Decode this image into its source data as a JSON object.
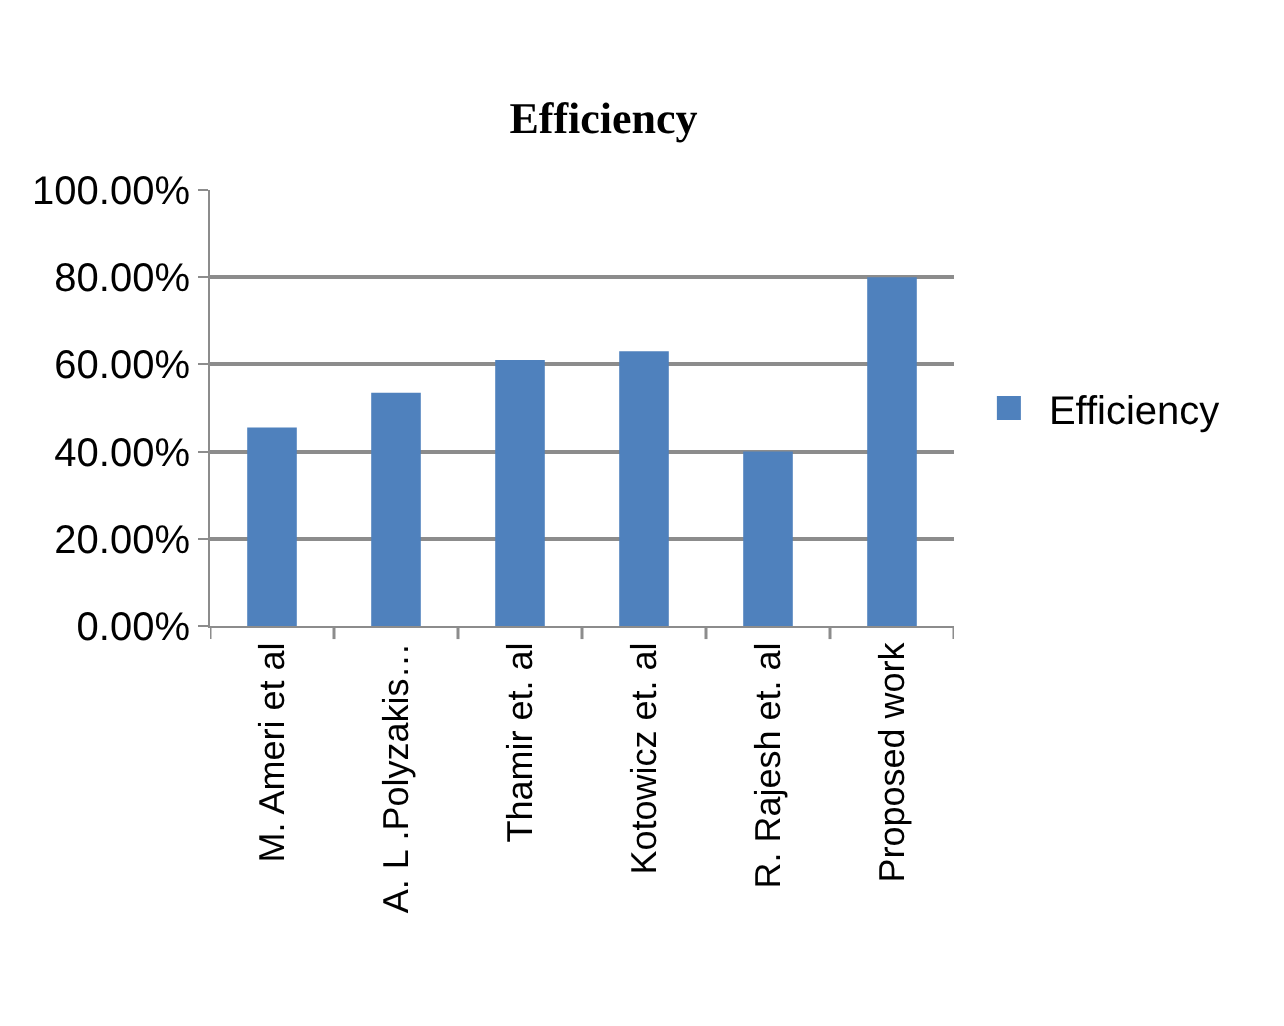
{
  "chart_data": {
    "type": "bar",
    "title": "Efficiency",
    "categories": [
      "M. Ameri et al",
      "A. L .Polyzakis…",
      "Thamir et. al",
      "Kotowicz et. al",
      "R. Rajesh et. al",
      "Proposed work"
    ],
    "series": [
      {
        "name": "Efficiency",
        "color": "#4f81bd",
        "values": [
          45.5,
          53.5,
          61,
          63,
          40,
          80
        ]
      }
    ],
    "ylim": [
      0,
      100
    ],
    "yticks": [
      {
        "value": 0,
        "label": "0.00%"
      },
      {
        "value": 20,
        "label": "20.00%"
      },
      {
        "value": 40,
        "label": "40.00%"
      },
      {
        "value": 60,
        "label": "60.00%"
      },
      {
        "value": 80,
        "label": "80.00%"
      },
      {
        "value": 100,
        "label": "100.00%"
      }
    ],
    "grid": "y",
    "legend": "right"
  }
}
